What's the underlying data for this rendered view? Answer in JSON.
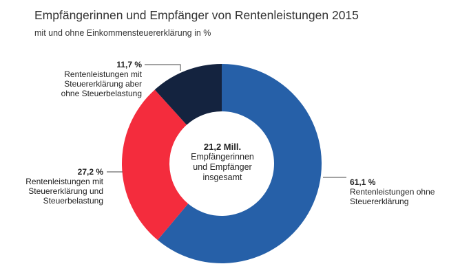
{
  "title": "Empfängerinnen und Empfänger von Rentenleistungen 2015",
  "subtitle": "mit und ohne Einkommensteuererklärung in %",
  "center": {
    "value": "21,2 Mill.",
    "text": "Empfängerinnen\nund Empfänger\ninsgesamt"
  },
  "colors": {
    "blue": "#2660a8",
    "red": "#f42c3d",
    "navy": "#14233f"
  },
  "labels": {
    "slice1": {
      "pct": "61,1 %",
      "desc": "Rentenleistungen ohne\nSteuererklärung"
    },
    "slice2": {
      "pct": "27,2 %",
      "desc": "Rentenleistungen mit\nSteuererklärung und\nSteuerbelastung"
    },
    "slice3": {
      "pct": "11,7 %",
      "desc": "Rentenleistungen mit\nSteuererklärung aber\nohne Steuerbelastung"
    }
  },
  "chart_data": {
    "type": "pie",
    "variant": "donut",
    "title": "Empfängerinnen und Empfänger von Rentenleistungen 2015",
    "subtitle": "mit und ohne Einkommensteuererklärung in %",
    "unit": "%",
    "categories": [
      "Rentenleistungen ohne Steuererklärung",
      "Rentenleistungen mit Steuererklärung und Steuerbelastung",
      "Rentenleistungen mit Steuererklärung aber ohne Steuerbelastung"
    ],
    "values": [
      61.1,
      27.2,
      11.7
    ],
    "colors": [
      "#2660a8",
      "#f42c3d",
      "#14233f"
    ],
    "total_label": "21,2 Mill. Empfängerinnen und Empfänger insgesamt"
  }
}
